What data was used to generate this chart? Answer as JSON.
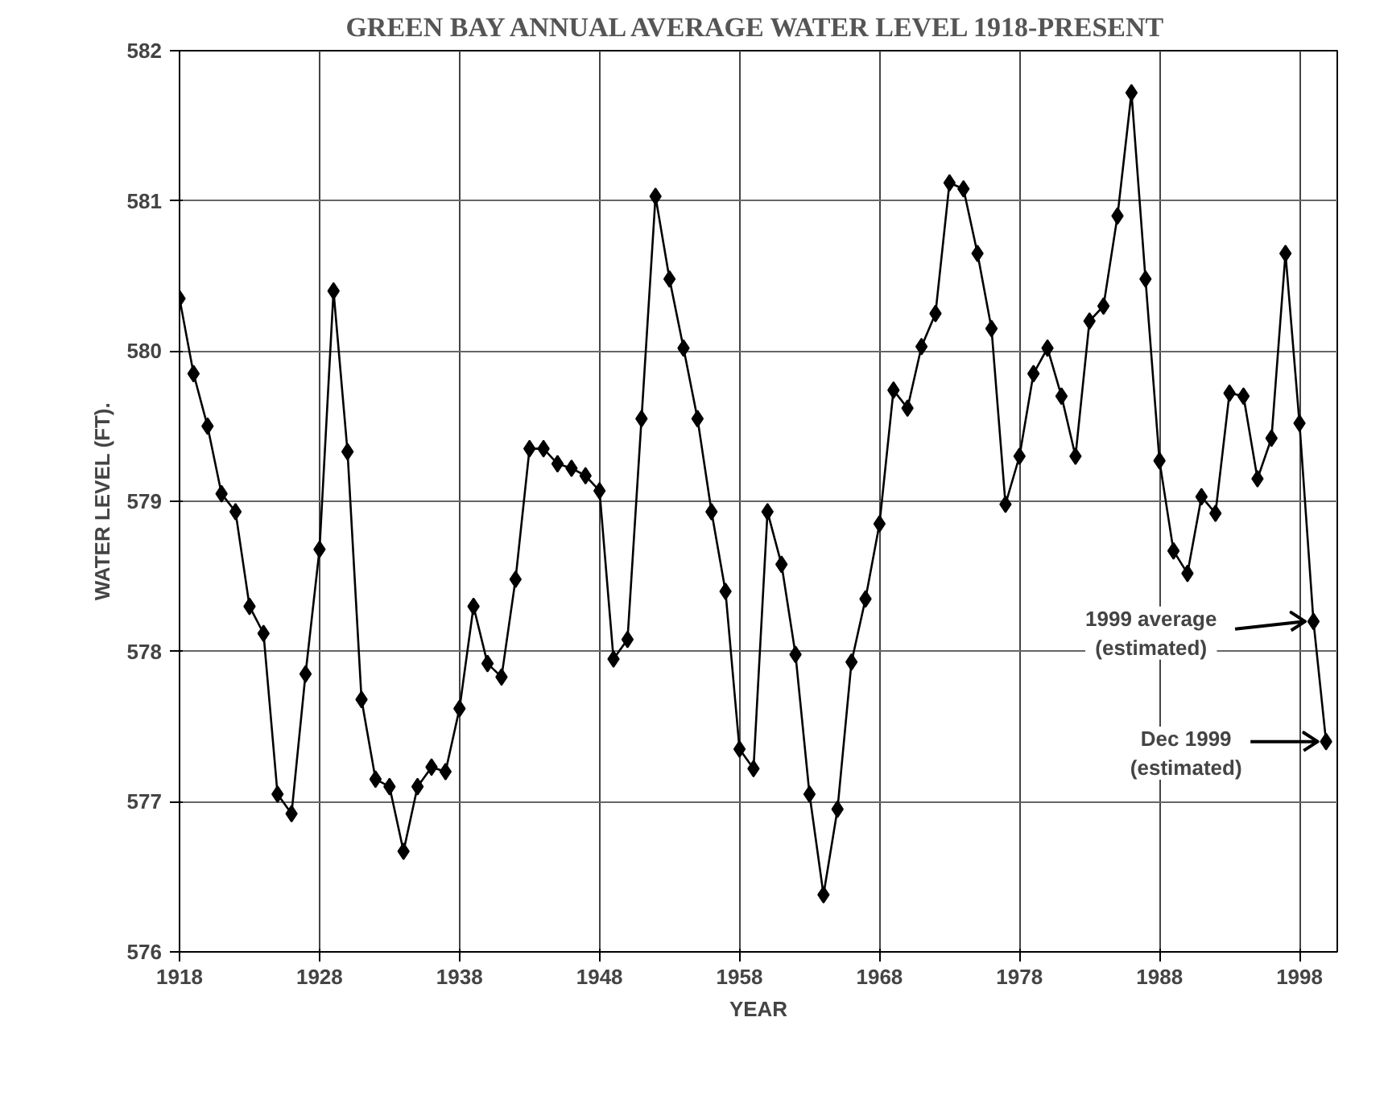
{
  "chart_data": {
    "type": "line",
    "title": "GREEN BAY ANNUAL AVERAGE WATER LEVEL 1918-PRESENT",
    "xlabel": "YEAR",
    "ylabel": "WATER LEVEL (FT).",
    "x": [
      1918,
      1919,
      1920,
      1921,
      1922,
      1923,
      1924,
      1925,
      1926,
      1927,
      1928,
      1929,
      1930,
      1931,
      1932,
      1933,
      1934,
      1935,
      1936,
      1937,
      1938,
      1939,
      1940,
      1941,
      1942,
      1943,
      1944,
      1945,
      1946,
      1947,
      1948,
      1949,
      1950,
      1951,
      1952,
      1953,
      1954,
      1955,
      1956,
      1957,
      1958,
      1959,
      1960,
      1961,
      1962,
      1963,
      1964,
      1965,
      1966,
      1967,
      1968,
      1969,
      1970,
      1971,
      1972,
      1973,
      1974,
      1975,
      1976,
      1977,
      1978,
      1979,
      1980,
      1981,
      1982,
      1983,
      1984,
      1985,
      1986,
      1987,
      1988,
      1989,
      1990,
      1991,
      1992,
      1993,
      1994,
      1995,
      1996,
      1997,
      1998,
      1999,
      1999.9
    ],
    "series": [
      {
        "color": "#000000",
        "values": [
          580.35,
          579.85,
          579.5,
          579.05,
          578.93,
          578.3,
          578.12,
          577.05,
          576.92,
          577.85,
          578.68,
          580.4,
          579.33,
          577.68,
          577.15,
          577.1,
          576.67,
          577.1,
          577.23,
          577.2,
          577.62,
          578.3,
          577.92,
          577.83,
          578.48,
          579.35,
          579.35,
          579.25,
          579.22,
          579.17,
          579.07,
          577.95,
          578.08,
          579.55,
          581.03,
          580.48,
          580.02,
          579.55,
          578.93,
          578.4,
          577.35,
          577.22,
          578.93,
          578.58,
          577.98,
          577.05,
          576.38,
          576.95,
          577.93,
          578.35,
          578.85,
          579.74,
          579.62,
          580.03,
          580.25,
          581.12,
          581.08,
          580.65,
          580.15,
          578.98,
          579.3,
          579.85,
          580.02,
          579.7,
          579.3,
          580.2,
          580.3,
          580.9,
          581.72,
          580.48,
          579.27,
          578.67,
          578.52,
          579.03,
          578.92,
          579.72,
          579.7,
          579.15,
          579.42,
          580.65,
          579.52,
          578.2,
          577.4
        ]
      }
    ],
    "xlim": [
      1918,
      2000.7
    ],
    "ylim": [
      576,
      582
    ],
    "xticks": [
      1918,
      1928,
      1938,
      1948,
      1958,
      1968,
      1978,
      1988,
      1998
    ],
    "yticks": [
      576,
      577,
      578,
      579,
      580,
      581,
      582
    ],
    "grid": true,
    "marker": "diamond",
    "line_style": "solid",
    "annotations": [
      "1999 average\n(estimated)",
      "Dec 1999\n(estimated)"
    ]
  }
}
